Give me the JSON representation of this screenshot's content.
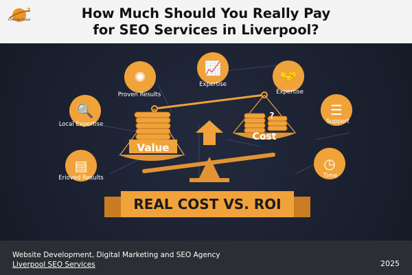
{
  "header": {
    "title_line1": "How Much Should You Really Pay",
    "title_line2": "for SEO Services in Liverpool?",
    "logo_text": "STMLinks Global"
  },
  "infographic": {
    "nodes": [
      {
        "label": "Proven Results",
        "icon": "brain-icon"
      },
      {
        "label": "Expertise",
        "icon": "growth-chart-icon"
      },
      {
        "label": "Expertise",
        "icon": "handshake-icon"
      },
      {
        "label": "Local Expertise",
        "icon": "magnifier-chart-icon"
      },
      {
        "label": "Support",
        "icon": "list-icon"
      },
      {
        "label": "Erioved Results",
        "icon": "report-icon"
      },
      {
        "label": "Time",
        "icon": "clock-icon"
      }
    ],
    "scale": {
      "left_pan": "Value",
      "right_pan": "Cost",
      "question": "?"
    },
    "banner": "REAL COST VS. ROI",
    "accent": "#f2a23a"
  },
  "footer": {
    "line1": "Website Development, Digital Marketing and SEO Agency",
    "link": "Liverpool SEO Services",
    "year": "2025"
  }
}
